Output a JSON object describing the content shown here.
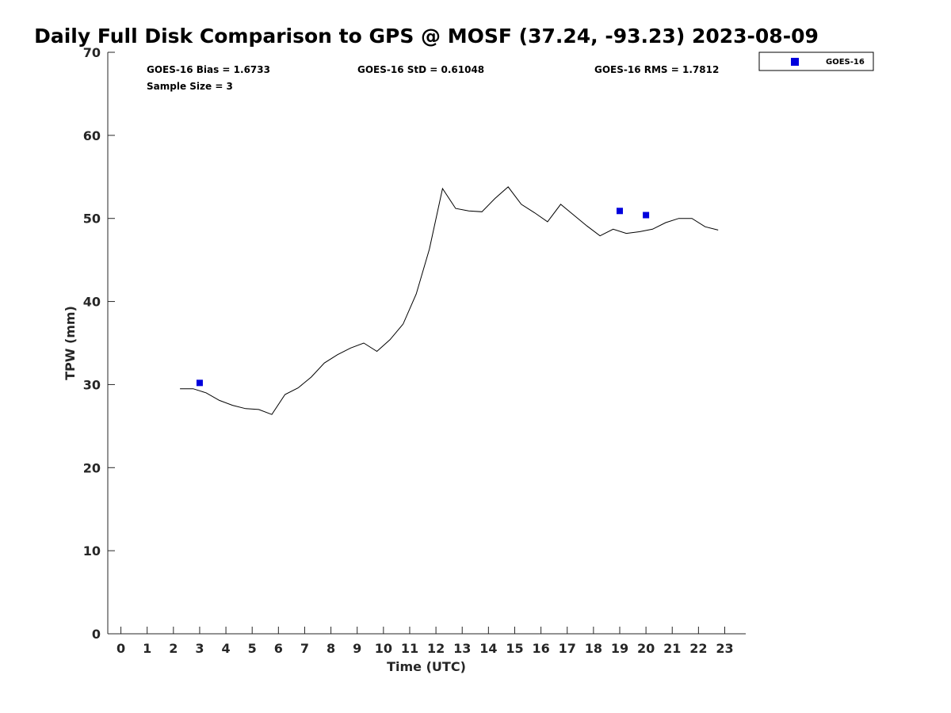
{
  "chart_data": {
    "type": "line",
    "title": "Daily Full Disk Comparison to GPS @ MOSF (37.24, -93.23) 2023-08-09",
    "xlabel": "Time (UTC)",
    "ylabel": "TPW (mm)",
    "xlim": [
      -0.5,
      23.8
    ],
    "ylim": [
      0,
      70
    ],
    "xticks": [
      "0",
      "1",
      "2",
      "3",
      "4",
      "5",
      "6",
      "7",
      "8",
      "9",
      "10",
      "11",
      "12",
      "13",
      "14",
      "15",
      "16",
      "17",
      "18",
      "19",
      "20",
      "21",
      "22",
      "23"
    ],
    "yticks": [
      "0",
      "10",
      "20",
      "30",
      "40",
      "50",
      "60",
      "70"
    ],
    "grid": false,
    "legend_position": "top-right outside",
    "stats": {
      "bias": "GOES-16 Bias = 1.6733",
      "std": "GOES-16 StD = 0.61048",
      "rms": "GOES-16 RMS = 1.7812",
      "sample": "Sample Size = 3"
    },
    "series": [
      {
        "kind": "line",
        "color": "#000000",
        "x": [
          2.25,
          2.75,
          3.25,
          3.75,
          4.25,
          4.75,
          5.25,
          5.75,
          6.25,
          6.75,
          7.25,
          7.75,
          8.25,
          8.75,
          9.25,
          9.75,
          10.25,
          10.75,
          11.25,
          11.75,
          12.25,
          12.75,
          13.25,
          13.75,
          14.25,
          14.75,
          15.25,
          15.75,
          16.25,
          16.75,
          17.25,
          17.75,
          18.25,
          18.75,
          19.25,
          19.75,
          20.25,
          20.75,
          21.25,
          21.75,
          22.25,
          22.75
        ],
        "y": [
          29.5,
          29.5,
          29.0,
          28.1,
          27.5,
          27.1,
          27.0,
          26.4,
          28.8,
          29.6,
          30.9,
          32.6,
          33.6,
          34.4,
          35.0,
          34.0,
          35.4,
          37.3,
          40.9,
          46.3,
          53.6,
          51.2,
          50.9,
          50.8,
          52.4,
          53.8,
          51.7,
          50.7,
          49.6,
          51.7,
          50.4,
          49.1,
          47.9,
          48.7,
          48.2,
          48.4,
          48.7,
          49.5,
          50.0,
          50.0,
          49.0,
          48.6
        ]
      },
      {
        "kind": "scatter",
        "name": "GOES-16",
        "color": "#0000dd",
        "x": [
          3.0,
          19.0,
          20.0
        ],
        "y": [
          30.2,
          50.9,
          50.4
        ]
      }
    ]
  }
}
